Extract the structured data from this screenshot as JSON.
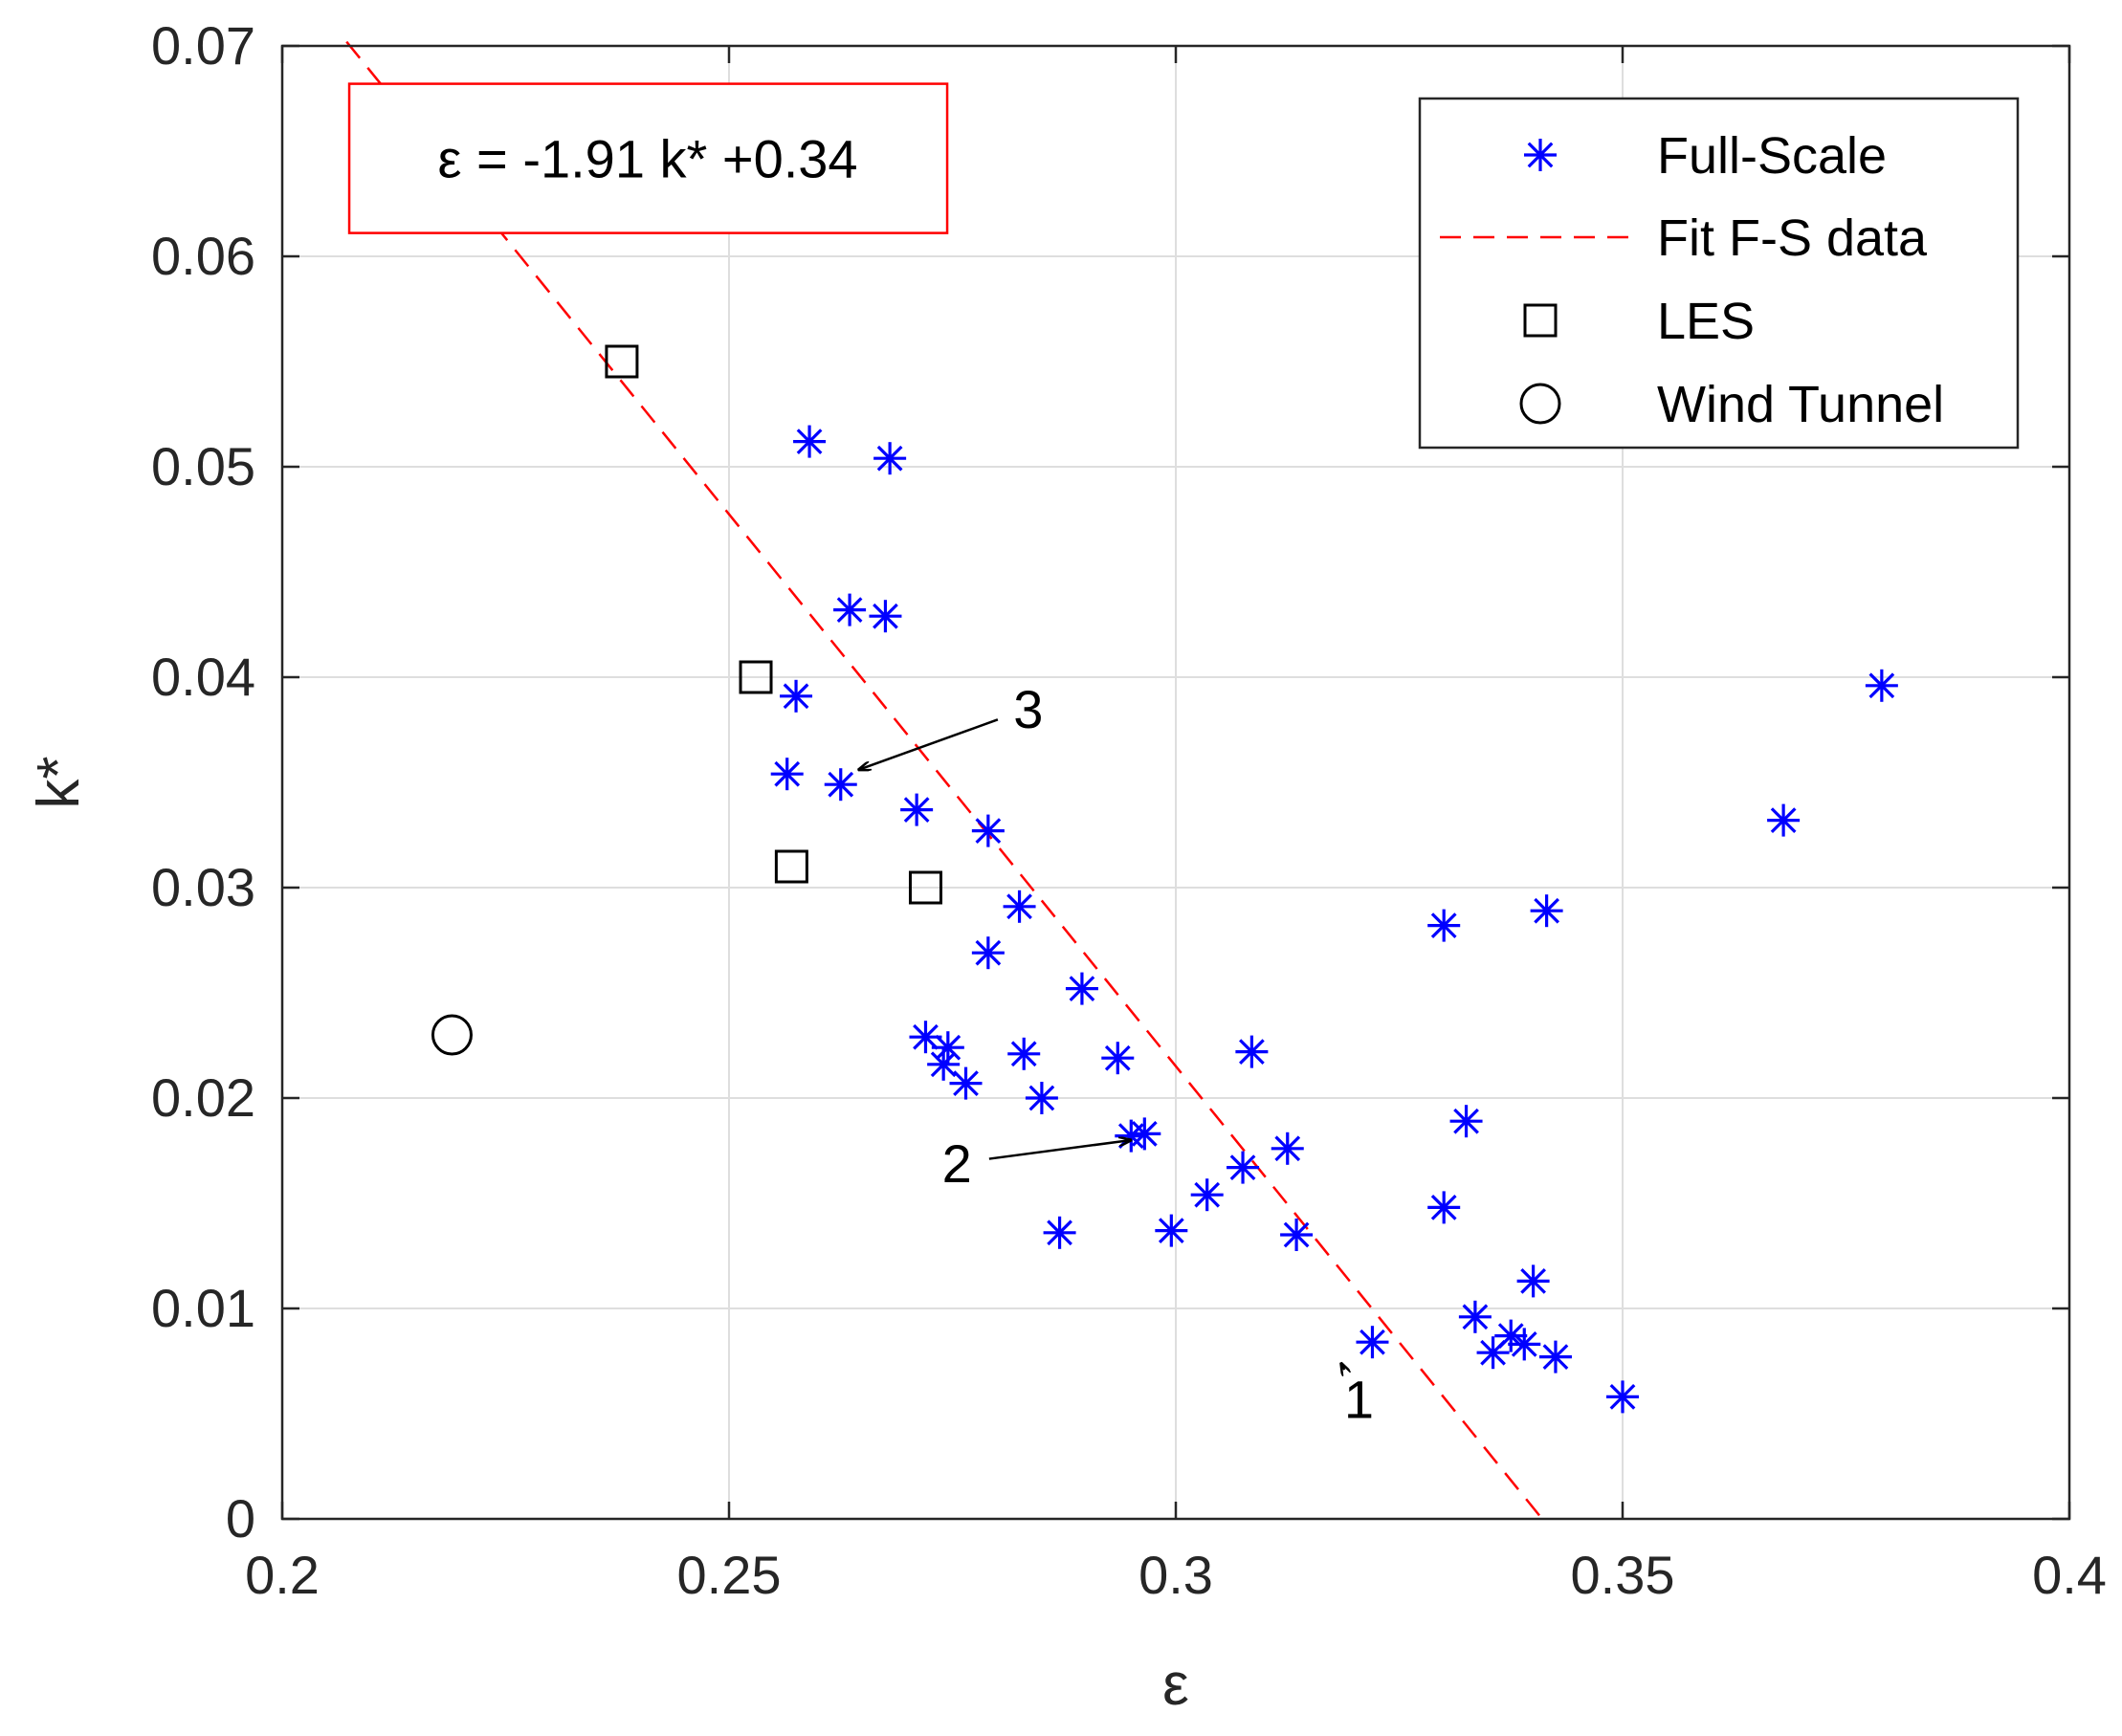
{
  "chart_data": {
    "type": "scatter",
    "xlabel": "ε",
    "ylabel": "k*",
    "xlim": [
      0.2,
      0.4
    ],
    "ylim": [
      0,
      0.07
    ],
    "x_ticks": [
      0.2,
      0.25,
      0.3,
      0.35,
      0.4
    ],
    "x_tick_labels": [
      "0.2",
      "0.25",
      "0.3",
      "0.35",
      "0.4"
    ],
    "y_ticks": [
      0,
      0.01,
      0.02,
      0.03,
      0.04,
      0.05,
      0.06,
      0.07
    ],
    "y_tick_labels": [
      "0",
      "0.01",
      "0.02",
      "0.03",
      "0.04",
      "0.05",
      "0.06",
      "0.07"
    ],
    "grid": true,
    "legend_position": "top-right",
    "series": [
      {
        "name": "Full-Scale",
        "marker": "asterisk",
        "color": "#0000ff",
        "points": [
          [
            0.259,
            0.0512
          ],
          [
            0.268,
            0.0504
          ],
          [
            0.2635,
            0.0432
          ],
          [
            0.2675,
            0.0429
          ],
          [
            0.2575,
            0.0391
          ],
          [
            0.2565,
            0.0354
          ],
          [
            0.2625,
            0.0349
          ],
          [
            0.271,
            0.0337
          ],
          [
            0.279,
            0.0327
          ],
          [
            0.2825,
            0.0291
          ],
          [
            0.279,
            0.0269
          ],
          [
            0.2895,
            0.0252
          ],
          [
            0.272,
            0.0229
          ],
          [
            0.2745,
            0.0224
          ],
          [
            0.274,
            0.0216
          ],
          [
            0.2765,
            0.0207
          ],
          [
            0.283,
            0.0221
          ],
          [
            0.285,
            0.02
          ],
          [
            0.2935,
            0.0219
          ],
          [
            0.295,
            0.0182
          ],
          [
            0.2965,
            0.0183
          ],
          [
            0.287,
            0.0136
          ],
          [
            0.2995,
            0.0137
          ],
          [
            0.3035,
            0.0154
          ],
          [
            0.3075,
            0.0167
          ],
          [
            0.3085,
            0.0222
          ],
          [
            0.3125,
            0.0176
          ],
          [
            0.3135,
            0.0135
          ],
          [
            0.322,
            0.0084
          ],
          [
            0.33,
            0.0148
          ],
          [
            0.33,
            0.0282
          ],
          [
            0.3325,
            0.0189
          ],
          [
            0.3335,
            0.0096
          ],
          [
            0.3355,
            0.0079
          ],
          [
            0.3375,
            0.0087
          ],
          [
            0.339,
            0.0083
          ],
          [
            0.34,
            0.0113
          ],
          [
            0.3415,
            0.0289
          ],
          [
            0.3425,
            0.0077
          ],
          [
            0.35,
            0.0058
          ],
          [
            0.368,
            0.0332
          ],
          [
            0.379,
            0.0396
          ]
        ]
      },
      {
        "name": "Fit F-S data",
        "marker": "dashed-line",
        "color": "#ff0000",
        "points": [
          [
            0.2072,
            0.0702
          ],
          [
            0.341,
            0.0
          ]
        ]
      },
      {
        "name": "LES",
        "marker": "square",
        "color": "#000000",
        "points": [
          [
            0.238,
            0.055
          ],
          [
            0.253,
            0.04
          ],
          [
            0.257,
            0.031
          ],
          [
            0.272,
            0.03
          ]
        ]
      },
      {
        "name": "Wind Tunnel",
        "marker": "circle",
        "color": "#000000",
        "points": [
          [
            0.219,
            0.023
          ]
        ]
      }
    ],
    "equation_box": {
      "text": "ε = -1.91 k* +0.34",
      "anchor": [
        0.2075,
        0.0682
      ],
      "border_color": "#ff0000"
    },
    "annotations": [
      {
        "label": "1",
        "text_at": [
          0.3205,
          0.0048
        ],
        "arrow_to": [
          0.3185,
          0.0074
        ]
      },
      {
        "label": "2",
        "text_at": [
          0.2755,
          0.016
        ],
        "arrow_to": [
          0.295,
          0.018
        ]
      },
      {
        "label": "3",
        "text_at": [
          0.2835,
          0.0376
        ],
        "arrow_to": [
          0.2645,
          0.0356
        ]
      }
    ]
  }
}
